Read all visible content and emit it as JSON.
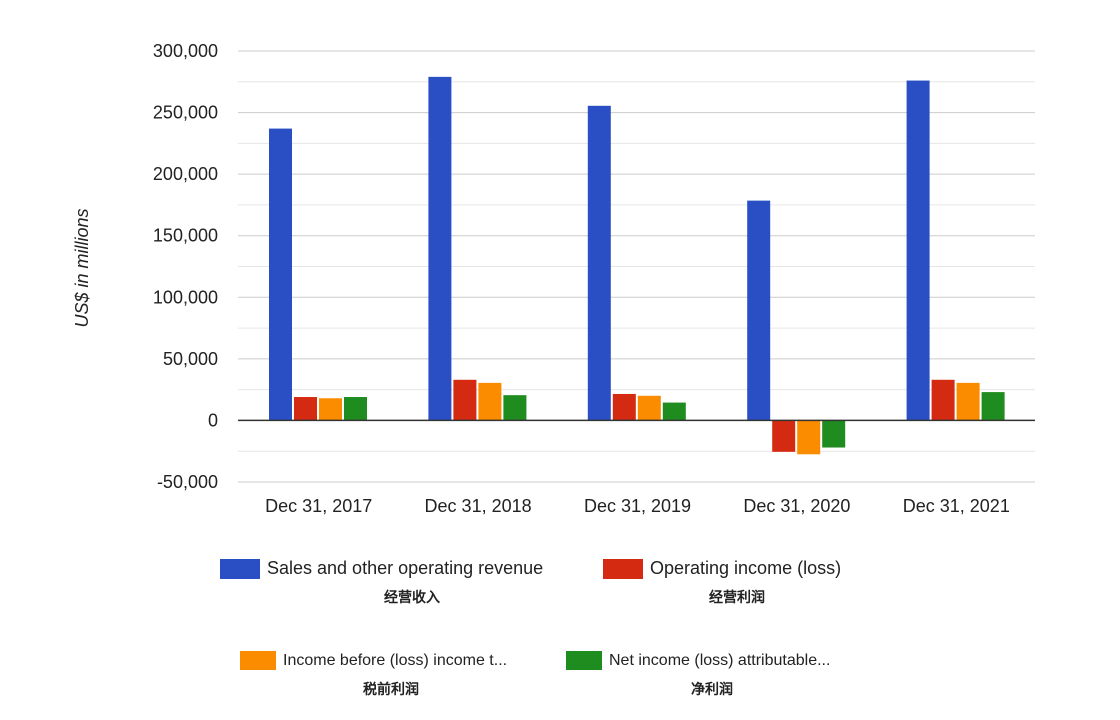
{
  "chart_data": {
    "type": "bar",
    "title": "",
    "xlabel": "",
    "ylabel": "US$ in millions",
    "categories": [
      "Dec 31, 2017",
      "Dec 31, 2018",
      "Dec 31, 2019",
      "Dec 31, 2020",
      "Dec 31, 2021"
    ],
    "ylim": [
      -50000,
      300000
    ],
    "yticks": [
      -50000,
      0,
      50000,
      100000,
      150000,
      200000,
      250000,
      300000
    ],
    "ytick_labels": [
      "-50,000",
      "0",
      "50,000",
      "100,000",
      "150,000",
      "200,000",
      "250,000",
      "300,000"
    ],
    "grid": true,
    "legend_position": "bottom",
    "series": [
      {
        "name": "Sales and other operating revenue",
        "sublabel": "经营收入",
        "color": "#2a4fc4",
        "values": [
          237000,
          279000,
          255500,
          178500,
          276000
        ]
      },
      {
        "name": "Operating income (loss)",
        "sublabel": "经营利润",
        "color": "#d42a12",
        "values": [
          19000,
          33000,
          21500,
          -25500,
          33000
        ]
      },
      {
        "name": "Income before (loss) income t...",
        "sublabel": "税前利润",
        "color": "#fb8c00",
        "values": [
          18000,
          30500,
          20000,
          -27500,
          30500
        ]
      },
      {
        "name": "Net income (loss) attributable...",
        "sublabel": "净利润",
        "color": "#1e8c1e",
        "values": [
          19000,
          20500,
          14500,
          -22000,
          23000
        ]
      }
    ]
  }
}
